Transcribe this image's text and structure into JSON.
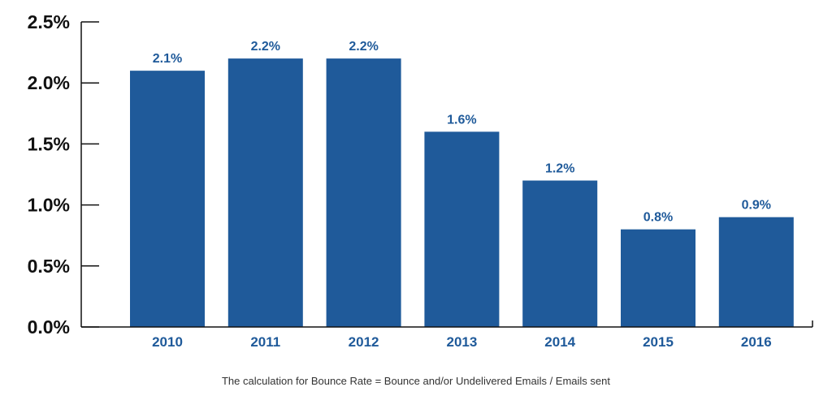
{
  "chart_data": {
    "type": "bar",
    "title": "",
    "xlabel": "",
    "ylabel": "",
    "categories": [
      "2010",
      "2011",
      "2012",
      "2013",
      "2014",
      "2015",
      "2016"
    ],
    "values": [
      2.1,
      2.2,
      2.2,
      1.6,
      1.2,
      0.8,
      0.9
    ],
    "data_labels": [
      "2.1%",
      "2.2%",
      "2.2%",
      "1.6%",
      "1.2%",
      "0.8%",
      "0.9%"
    ],
    "yticks": [
      0,
      0.5,
      1.0,
      1.5,
      2.0,
      2.5
    ],
    "ytick_labels": [
      "0.0%",
      "0.5%",
      "1.0%",
      "1.5%",
      "2.0%",
      "2.5%"
    ],
    "ylim": [
      0,
      2.5
    ],
    "grid": false,
    "colors": {
      "bar": "#1f5a9a",
      "label": "#1f5a9a",
      "axis": "#111111"
    }
  },
  "footnote": "The calculation for Bounce Rate = Bounce and/or Undelivered Emails / Emails sent"
}
